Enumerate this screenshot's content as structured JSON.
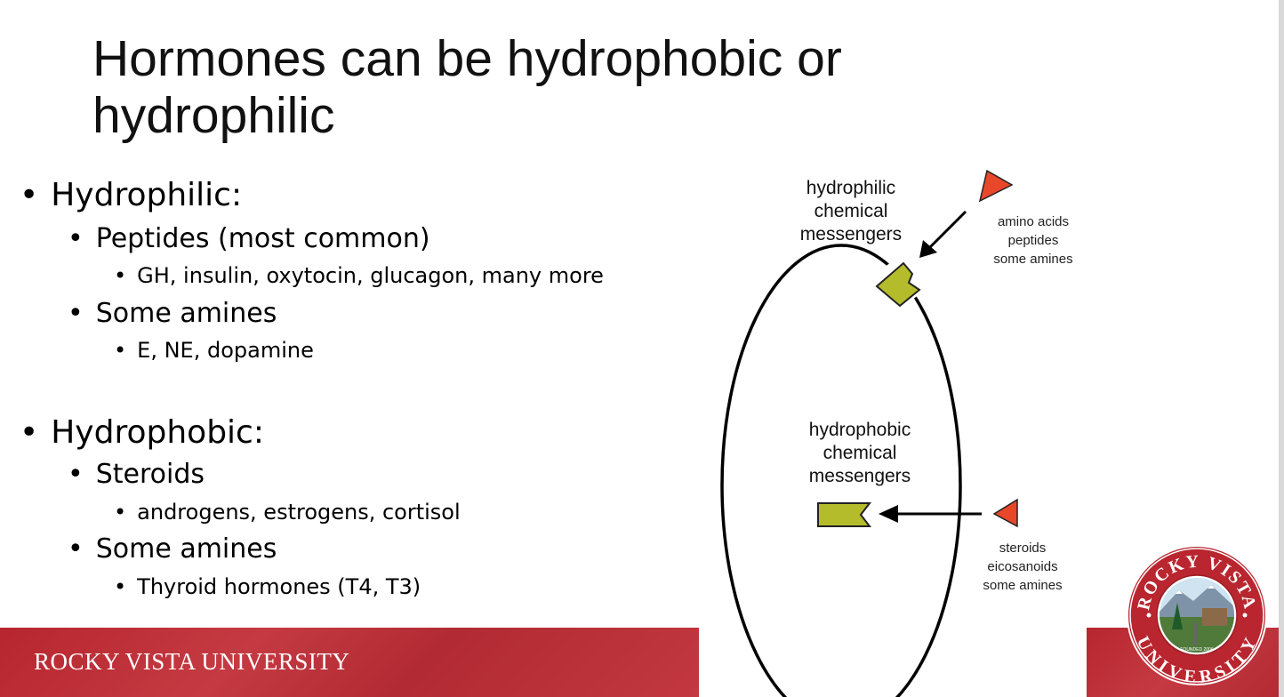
{
  "slide": {
    "title_line1": "Hormones can be hydrophobic or",
    "title_line2": "hydrophilic"
  },
  "bullets": {
    "hydrophilic": {
      "label": "Hydrophilic:",
      "peptides": "Peptides (most common)",
      "peptides_examples": "GH, insulin, oxytocin, glucagon, many more",
      "amines": "Some amines",
      "amines_examples": "E, NE, dopamine"
    },
    "hydrophobic": {
      "label": "Hydrophobic:",
      "steroids": "Steroids",
      "steroids_examples": "androgens, estrogens, cortisol",
      "amines": "Some amines",
      "amines_examples": "Thyroid hormones (T4, T3)"
    },
    "bullet_char": "•"
  },
  "diagram": {
    "hydrophilic_label": [
      "hydrophilic",
      "chemical",
      "messengers"
    ],
    "hydrophobic_label": [
      "hydrophobic",
      "chemical",
      "messengers"
    ],
    "hydrophilic_examples": [
      "amino acids",
      "peptides",
      "some amines"
    ],
    "hydrophobic_examples": [
      "steroids",
      "eicosanoids",
      "some amines"
    ],
    "colors": {
      "messenger": "#e8472a",
      "receptor": "#b5bc2c",
      "outline": "#000000"
    }
  },
  "footer": {
    "university_name": "ROCKY VISTA UNIVERSITY",
    "band_color": "#b9262f"
  },
  "logo": {
    "top_text": "ROCKY VISTA",
    "bottom_text": "UNIVERSITY",
    "founded": "FOUNDED 2006"
  }
}
